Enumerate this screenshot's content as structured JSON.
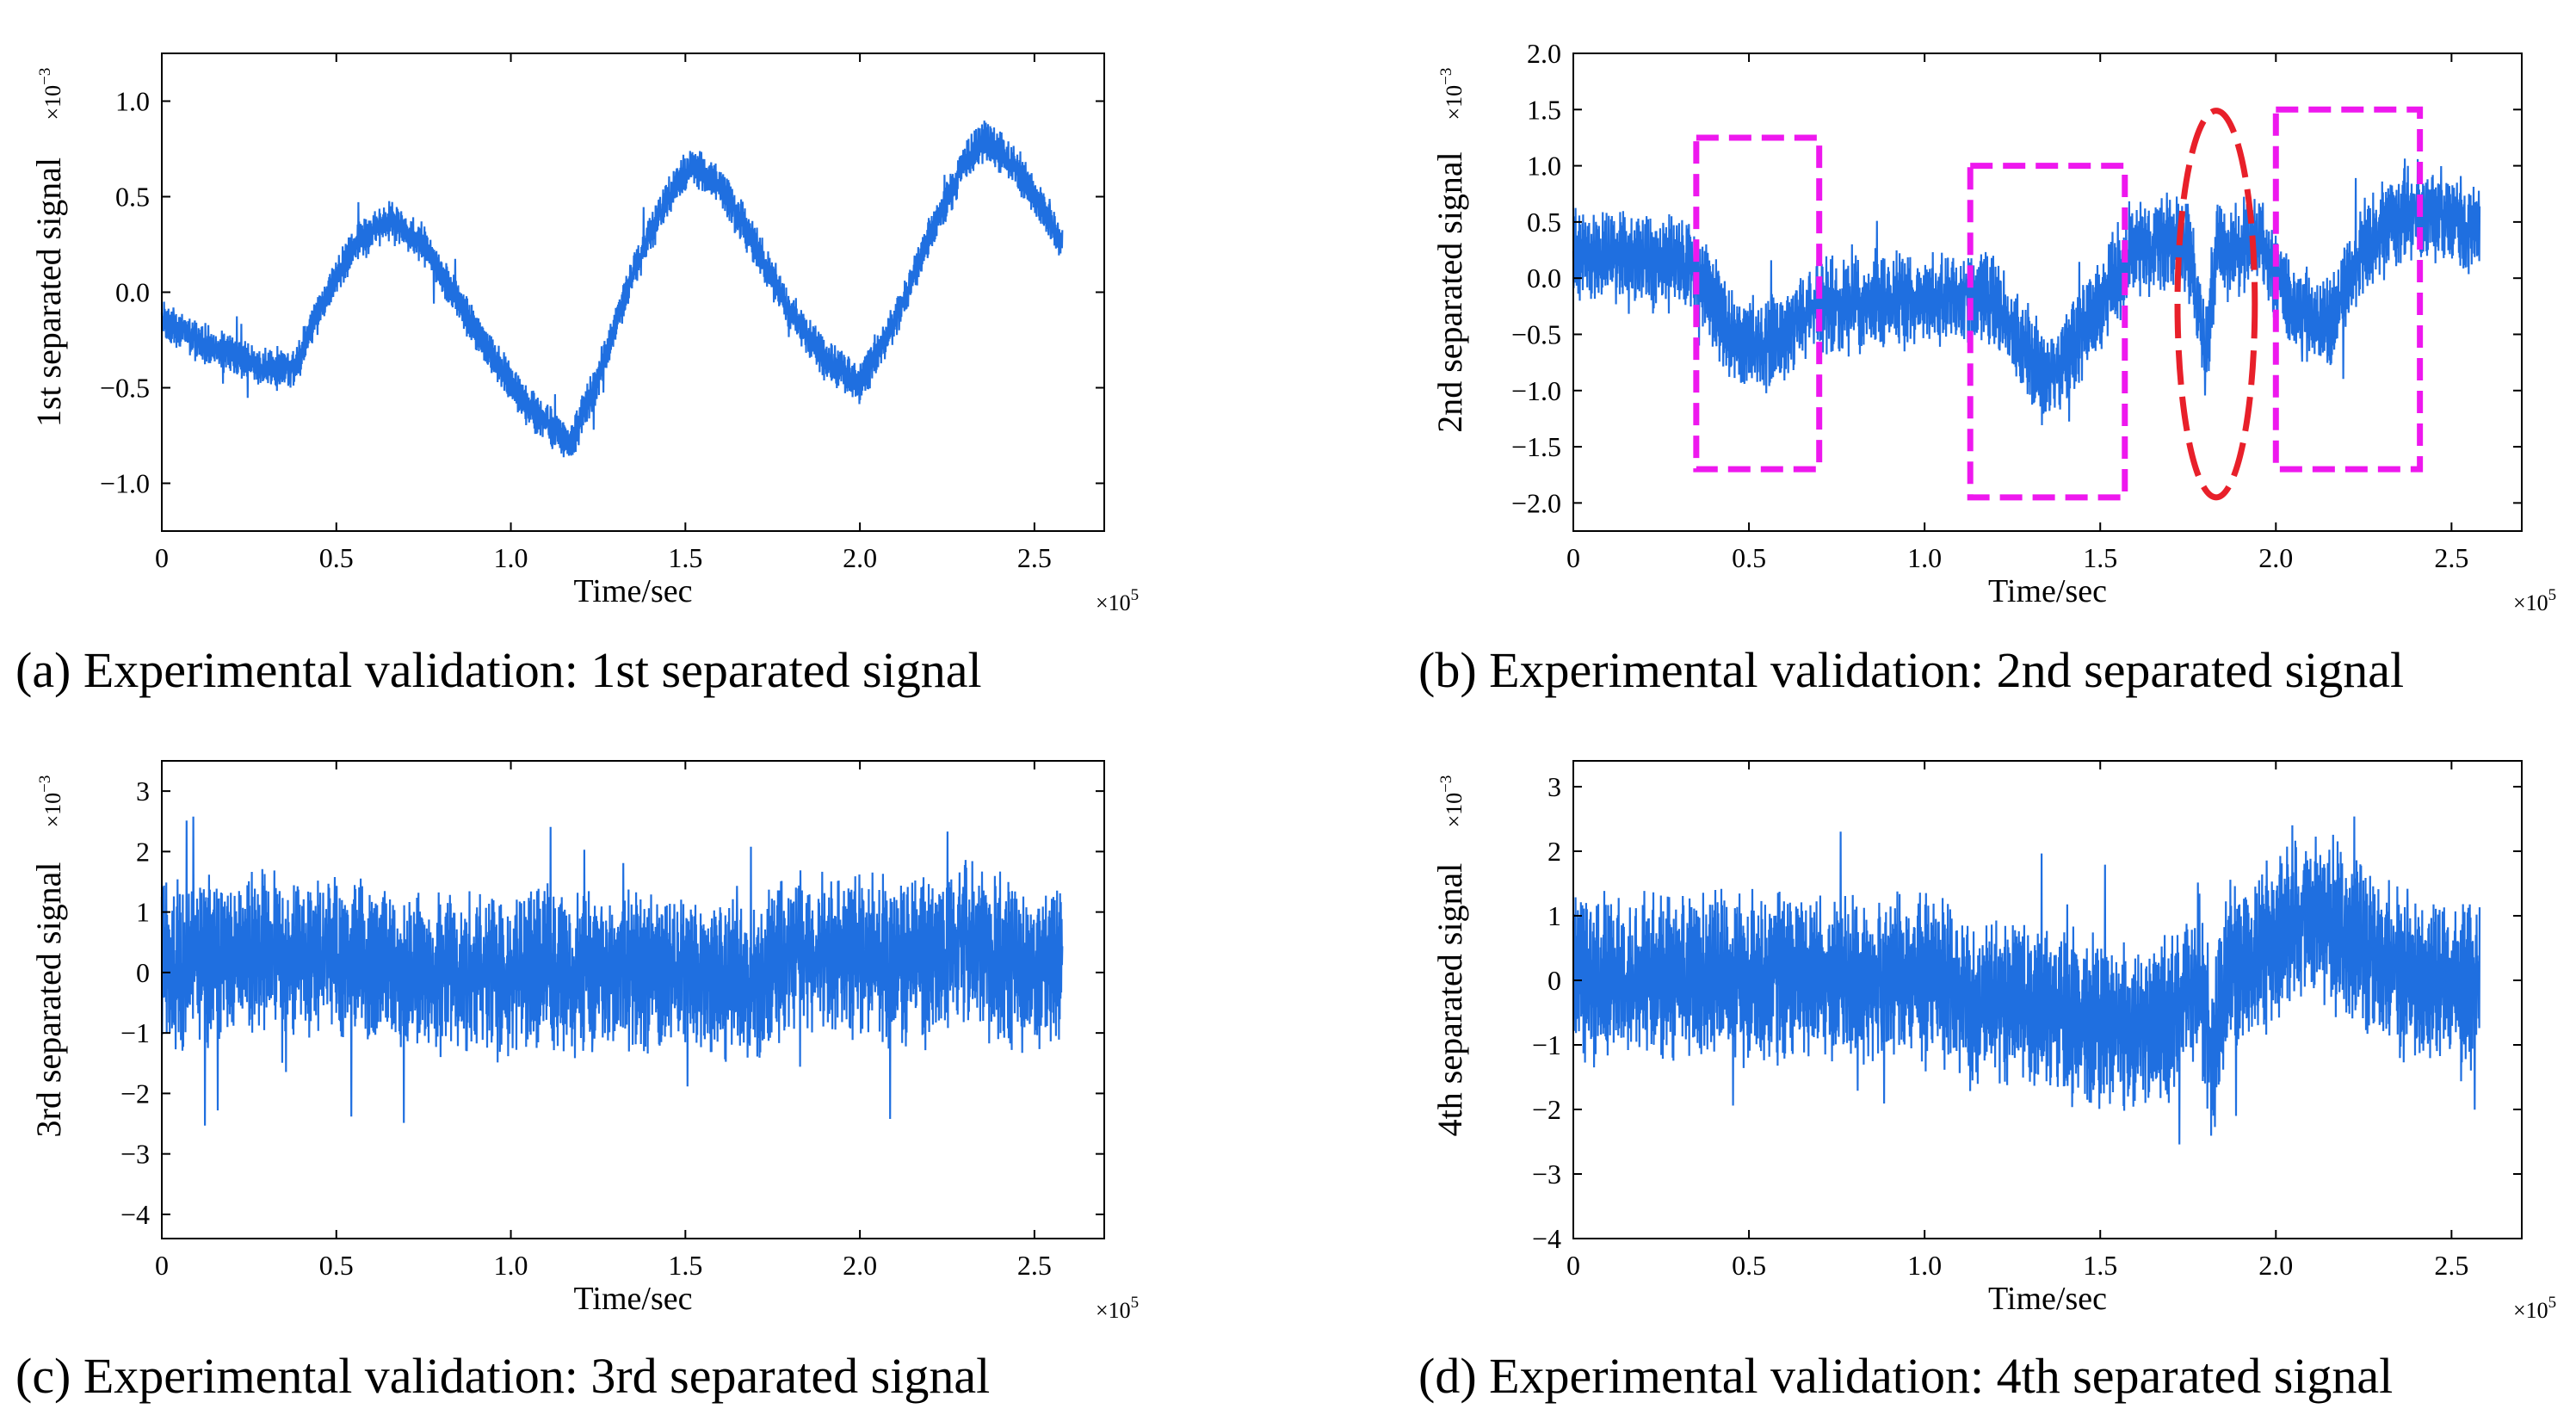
{
  "colors": {
    "signal": "#1f6fe0",
    "box": "#ee18ee",
    "ellipse": "#e8202a",
    "axis": "#000000"
  },
  "chart_data": [
    {
      "id": "a",
      "type": "line",
      "caption": "(a) Experimental validation: 1st separated signal",
      "ylabel": "1st separated signal",
      "yscale_label": "×10",
      "yscale_exp": "−3",
      "xlabel": "Time/sec",
      "xscale_label": "×10",
      "xscale_exp": "5",
      "xlim": [
        0,
        2.7
      ],
      "ylim": [
        -1.25,
        1.25
      ],
      "x_ticks": [
        0,
        0.5,
        1.0,
        1.5,
        2.0,
        2.5
      ],
      "x_tick_labels": [
        "0",
        "0.5",
        "1.0",
        "1.5",
        "2.0",
        "2.5"
      ],
      "y_ticks": [
        -1.0,
        -0.5,
        0.0,
        0.5,
        1.0
      ],
      "y_tick_labels": [
        "−1.0",
        "−0.5",
        "0.0",
        "0.5",
        "1.0"
      ],
      "series": [
        {
          "x_end": 2.58,
          "envelope_x": [
            0,
            0.1,
            0.2,
            0.3,
            0.38,
            0.45,
            0.55,
            0.65,
            0.75,
            0.85,
            0.95,
            1.05,
            1.17,
            1.25,
            1.35,
            1.45,
            1.52,
            1.6,
            1.7,
            1.8,
            1.9,
            2.0,
            2.1,
            2.2,
            2.3,
            2.36,
            2.45,
            2.52,
            2.58
          ],
          "envelope_center": [
            -0.15,
            -0.25,
            -0.33,
            -0.4,
            -0.4,
            -0.1,
            0.25,
            0.38,
            0.25,
            -0.05,
            -0.35,
            -0.6,
            -0.8,
            -0.45,
            0.1,
            0.5,
            0.68,
            0.55,
            0.25,
            -0.1,
            -0.35,
            -0.48,
            -0.15,
            0.3,
            0.68,
            0.8,
            0.65,
            0.45,
            0.25
          ],
          "envelope_half_width": 0.08,
          "noise_amplitude": 0.04
        }
      ],
      "annotations": []
    },
    {
      "id": "b",
      "type": "line",
      "caption": "(b) Experimental validation: 2nd separated signal",
      "ylabel": "2nd separated signal",
      "yscale_label": "×10",
      "yscale_exp": "−3",
      "xlabel": "Time/sec",
      "xscale_label": "×10",
      "xscale_exp": "5",
      "xlim": [
        0,
        2.7
      ],
      "ylim": [
        -2.25,
        2.0
      ],
      "x_ticks": [
        0,
        0.5,
        1.0,
        1.5,
        2.0,
        2.5
      ],
      "x_tick_labels": [
        "0",
        "0.5",
        "1.0",
        "1.5",
        "2.0",
        "2.5"
      ],
      "y_ticks": [
        -2.0,
        -1.5,
        -1.0,
        -0.5,
        0.0,
        0.5,
        1.0,
        1.5,
        2.0
      ],
      "y_tick_labels": [
        "−2.0",
        "−1.5",
        "−1.0",
        "−0.5",
        "0.0",
        "0.5",
        "1.0",
        "1.5",
        "2.0"
      ],
      "series": [
        {
          "x_end": 2.58,
          "envelope_x": [
            0,
            0.2,
            0.35,
            0.45,
            0.55,
            0.7,
            0.9,
            1.1,
            1.2,
            1.35,
            1.5,
            1.6,
            1.75,
            1.8,
            1.83,
            1.86,
            1.95,
            2.05,
            2.15,
            2.25,
            2.4,
            2.58
          ],
          "envelope_center": [
            0.2,
            0.15,
            0.1,
            -0.55,
            -0.6,
            -0.25,
            -0.2,
            -0.15,
            -0.2,
            -0.95,
            -0.2,
            0.3,
            0.3,
            -0.7,
            0.25,
            0.2,
            0.35,
            -0.3,
            -0.45,
            0.3,
            0.6,
            0.45
          ],
          "envelope_half_width": 0.28,
          "noise_amplitude": 0.2
        }
      ],
      "annotations": [
        {
          "shape": "rect",
          "x0": 0.35,
          "x1": 0.7,
          "y0": -1.7,
          "y1": 1.25,
          "color": "box"
        },
        {
          "shape": "rect",
          "x0": 1.13,
          "x1": 1.57,
          "y0": -1.95,
          "y1": 1.0,
          "color": "box"
        },
        {
          "shape": "ellipse",
          "cx": 1.83,
          "cy": -0.23,
          "rx": 0.11,
          "ry": 1.72,
          "color": "ellipse"
        },
        {
          "shape": "rect",
          "x0": 2.0,
          "x1": 2.41,
          "y0": -1.7,
          "y1": 1.5,
          "color": "box"
        }
      ]
    },
    {
      "id": "c",
      "type": "line",
      "caption": "(c) Experimental validation: 3rd separated signal",
      "ylabel": "3rd separated signal",
      "yscale_label": "×10",
      "yscale_exp": "−3",
      "xlabel": "Time/sec",
      "xscale_label": "×10",
      "xscale_exp": "5",
      "xlim": [
        0,
        2.7
      ],
      "ylim": [
        -4.4,
        3.5
      ],
      "x_ticks": [
        0,
        0.5,
        1.0,
        1.5,
        2.0,
        2.5
      ],
      "x_tick_labels": [
        "0",
        "0.5",
        "1.0",
        "1.5",
        "2.0",
        "2.5"
      ],
      "y_ticks": [
        -4,
        -3,
        -2,
        -1,
        0,
        1,
        2,
        3
      ],
      "y_tick_labels": [
        "−4",
        "−3",
        "−2",
        "−1",
        "0",
        "1",
        "2",
        "3"
      ],
      "series": [
        {
          "x_end": 2.58,
          "envelope_x": [
            0,
            0.3,
            0.5,
            0.8,
            1.2,
            1.5,
            1.7,
            1.8,
            2.0,
            2.2,
            2.3,
            2.45,
            2.58
          ],
          "envelope_center": [
            0.1,
            0.3,
            0.2,
            0.0,
            0.0,
            0.05,
            -0.25,
            0.35,
            0.2,
            0.15,
            0.5,
            0.1,
            0.1
          ],
          "envelope_half_width": 0.9,
          "noise_amplitude": 0.6
        }
      ],
      "annotations": []
    },
    {
      "id": "d",
      "type": "line",
      "caption": "(d) Experimental validation: 4th separated signal",
      "ylabel": "4th separated signal",
      "yscale_label": "×10",
      "yscale_exp": "−3",
      "xlabel": "Time/sec",
      "xscale_label": "×10",
      "xscale_exp": "5",
      "xlim": [
        0,
        2.7
      ],
      "ylim": [
        -4,
        3.4
      ],
      "x_ticks": [
        0,
        0.5,
        1.0,
        1.5,
        2.0,
        2.5
      ],
      "x_tick_labels": [
        "0",
        "0.5",
        "1.0",
        "1.5",
        "2.0",
        "2.5"
      ],
      "y_ticks": [
        -4,
        -3,
        -2,
        -1,
        0,
        1,
        2,
        3
      ],
      "y_tick_labels": [
        "−4",
        "−3",
        "−2",
        "−1",
        "0",
        "1",
        "2",
        "3"
      ],
      "series": [
        {
          "x_end": 2.58,
          "envelope_x": [
            0,
            0.4,
            0.8,
            1.05,
            1.15,
            1.3,
            1.5,
            1.7,
            1.78,
            1.82,
            1.86,
            1.95,
            2.05,
            2.15,
            2.3,
            2.45,
            2.58
          ],
          "envelope_center": [
            0.0,
            0.05,
            0.05,
            0.0,
            -0.5,
            -0.3,
            -0.7,
            -0.7,
            0.2,
            -1.4,
            0.3,
            0.3,
            1.0,
            0.9,
            0.3,
            -0.2,
            0.0
          ],
          "envelope_half_width": 0.9,
          "noise_amplitude": 0.55
        }
      ],
      "annotations": []
    }
  ]
}
